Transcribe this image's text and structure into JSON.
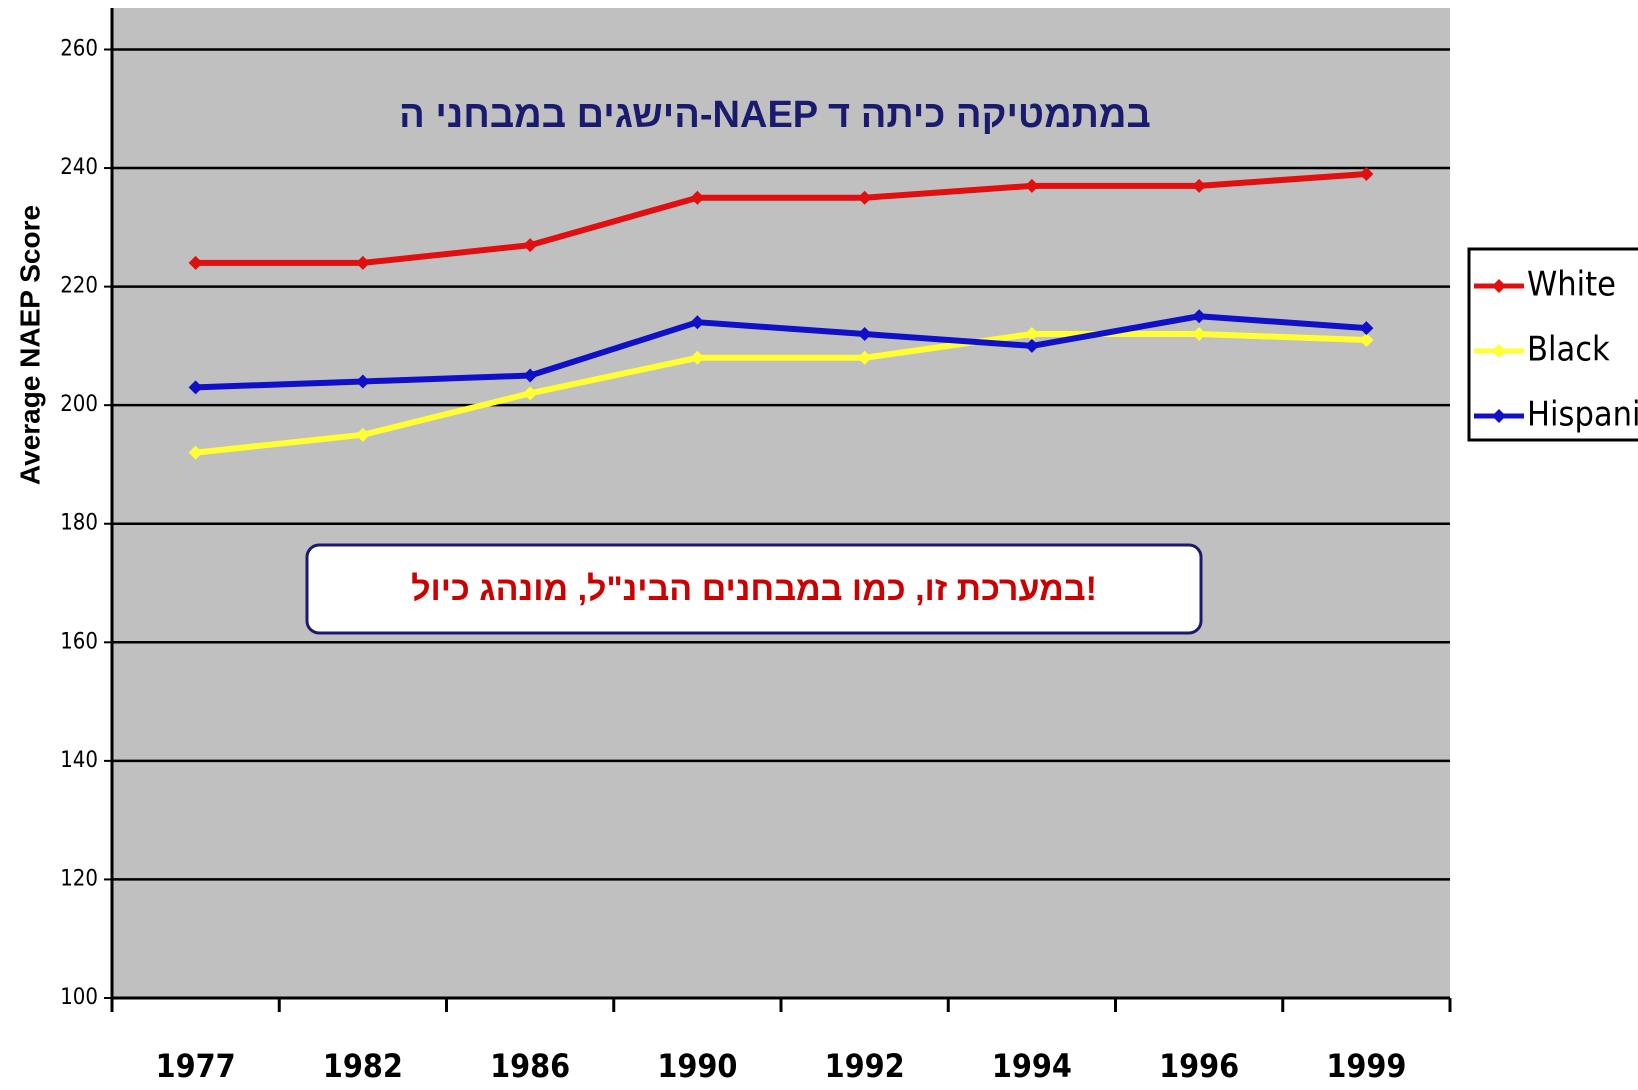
{
  "chart_data": {
    "type": "line",
    "title": "הישגים במבחני ה-NAEP במתמטיקה  כיתה ד",
    "annotation": "במערכת זו, כמו במבחנים הבינ\"ל, מונהג כיול!",
    "y_label": "Average NAEP Score",
    "categories": [
      "1977",
      "1982",
      "1986",
      "1990",
      "1992",
      "1994",
      "1996",
      "1999"
    ],
    "series": [
      {
        "name": "White",
        "color": "#e01010",
        "values": [
          224,
          224,
          227,
          235,
          235,
          237,
          237,
          239
        ]
      },
      {
        "name": "Black",
        "color": "#ffff33",
        "values": [
          192,
          195,
          202,
          208,
          208,
          212,
          212,
          211
        ]
      },
      {
        "name": "Hispanic",
        "color": "#1010c8",
        "values": [
          203,
          204,
          205,
          214,
          212,
          210,
          215,
          213
        ]
      }
    ],
    "ylim": [
      100,
      267
    ],
    "yticks": [
      100,
      120,
      140,
      160,
      180,
      200,
      220,
      240,
      260
    ],
    "grid": true,
    "legend": "right"
  }
}
